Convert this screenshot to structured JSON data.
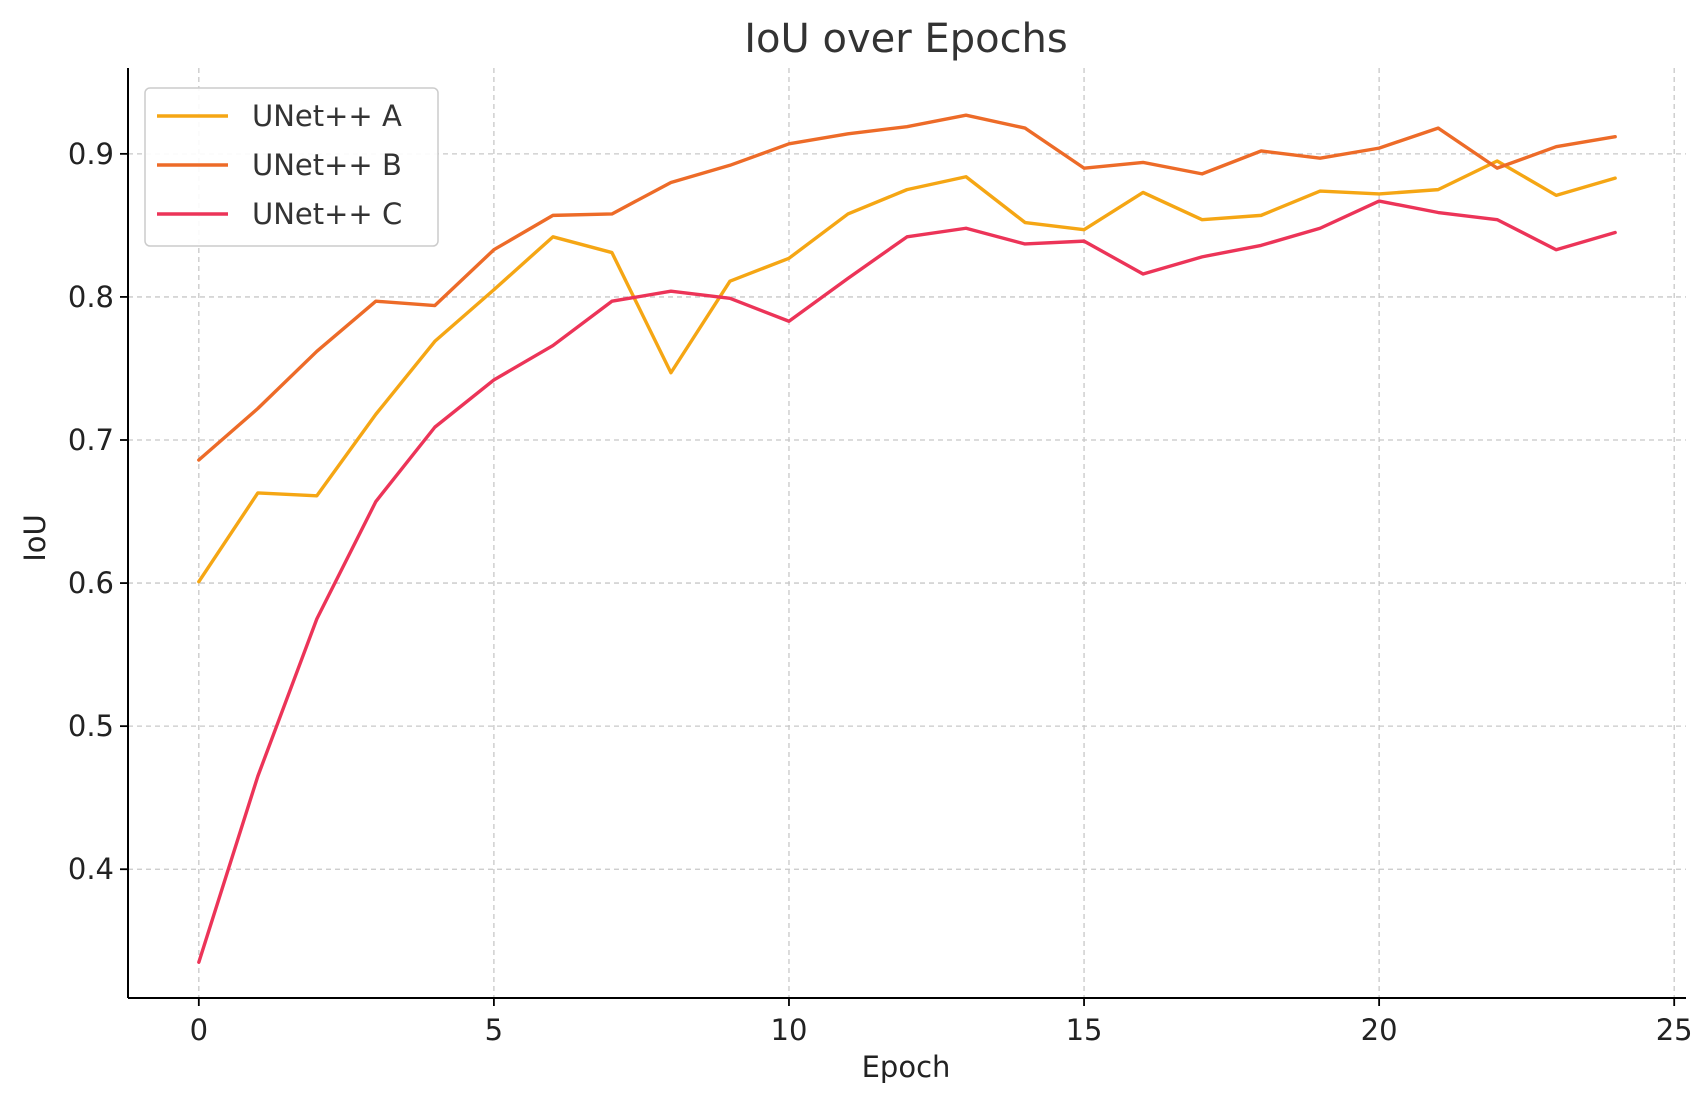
{
  "chart_data": {
    "type": "line",
    "title": "IoU over Epochs",
    "xlabel": "Epoch",
    "ylabel": "IoU",
    "xlim": [
      -1.2,
      25.2
    ],
    "ylim": [
      0.31,
      0.96
    ],
    "x_ticks": [
      0,
      5,
      10,
      15,
      20,
      25
    ],
    "y_ticks": [
      0.4,
      0.5,
      0.6,
      0.7,
      0.8,
      0.9
    ],
    "x_tick_labels": [
      "0",
      "5",
      "10",
      "15",
      "20",
      "25"
    ],
    "y_tick_labels": [
      "0.4",
      "0.5",
      "0.6",
      "0.7",
      "0.8",
      "0.9"
    ],
    "grid": true,
    "legend_position": "top-left",
    "x": [
      0,
      1,
      2,
      3,
      4,
      5,
      6,
      7,
      8,
      9,
      10,
      11,
      12,
      13,
      14,
      15,
      16,
      17,
      18,
      19,
      20,
      21,
      22,
      23,
      24
    ],
    "series": [
      {
        "name": "UNet++ A",
        "color": "#f5a614",
        "values": [
          0.601,
          0.663,
          0.661,
          0.718,
          0.769,
          0.805,
          0.842,
          0.831,
          0.747,
          0.811,
          0.827,
          0.858,
          0.875,
          0.884,
          0.852,
          0.847,
          0.873,
          0.854,
          0.857,
          0.874,
          0.872,
          0.875,
          0.895,
          0.871,
          0.883
        ]
      },
      {
        "name": "UNet++ B",
        "color": "#ed6b28",
        "values": [
          0.686,
          0.722,
          0.762,
          0.797,
          0.794,
          0.833,
          0.857,
          0.858,
          0.88,
          0.892,
          0.907,
          0.914,
          0.919,
          0.927,
          0.918,
          0.89,
          0.894,
          0.886,
          0.902,
          0.897,
          0.904,
          0.918,
          0.89,
          0.905,
          0.912
        ]
      },
      {
        "name": "UNet++ C",
        "color": "#ec3458",
        "values": [
          0.335,
          0.465,
          0.575,
          0.657,
          0.709,
          0.742,
          0.766,
          0.797,
          0.804,
          0.799,
          0.783,
          0.813,
          0.842,
          0.848,
          0.837,
          0.839,
          0.816,
          0.828,
          0.836,
          0.848,
          0.867,
          0.859,
          0.854,
          0.833,
          0.845
        ]
      }
    ]
  }
}
